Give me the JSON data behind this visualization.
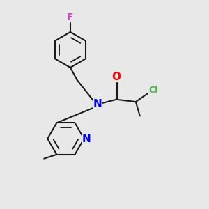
{
  "background_color": "#e8e8e8",
  "bond_color": "#1a1a1a",
  "N_color": "#0000ff",
  "O_color": "#ff0000",
  "F_color": "#cc44cc",
  "Cl_color": "#44bb44",
  "line_width": 1.5,
  "figsize": [
    3.0,
    3.0
  ],
  "dpi": 100,
  "xlim": [
    0.5,
    8.5
  ],
  "ylim": [
    0.5,
    9.5
  ]
}
